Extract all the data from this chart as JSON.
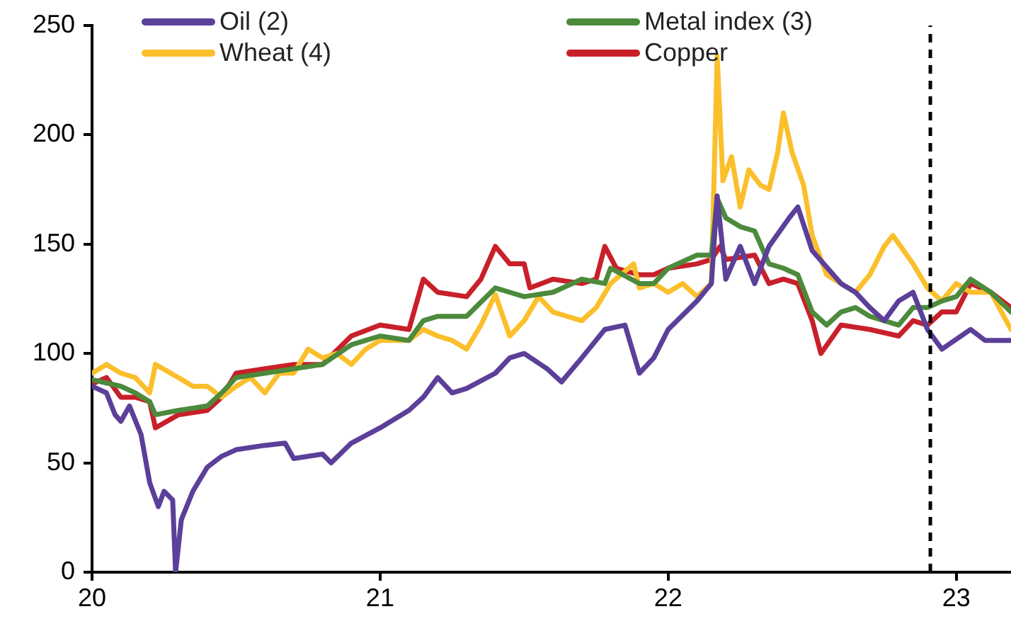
{
  "chart_data": {
    "type": "line",
    "xlim": [
      2020,
      2023.19
    ],
    "xticks": [
      {
        "value": 2020,
        "label": "20"
      },
      {
        "value": 2021,
        "label": "21"
      },
      {
        "value": 2022,
        "label": "22"
      },
      {
        "value": 2023,
        "label": "23"
      }
    ],
    "ylim": [
      0,
      250
    ],
    "yticks": [
      0,
      50,
      100,
      150,
      200,
      250
    ],
    "grid": false,
    "legend": "top",
    "marker": "none",
    "line_style": "solid",
    "ref_lines": [
      {
        "axis": "x",
        "value": 2022.91,
        "color": "#000000",
        "line_style": "dashed"
      }
    ],
    "series": [
      {
        "name": "Oil (2)",
        "color": "#5b3f99",
        "x": [
          2020,
          2020.05,
          2020.08,
          2020.1,
          2020.13,
          2020.17,
          2020.2,
          2020.23,
          2020.25,
          2020.28,
          2020.29,
          2020.31,
          2020.35,
          2020.4,
          2020.45,
          2020.5,
          2020.6,
          2020.67,
          2020.7,
          2020.8,
          2020.83,
          2020.9,
          2021,
          2021.1,
          2021.15,
          2021.2,
          2021.25,
          2021.3,
          2021.4,
          2021.45,
          2021.5,
          2021.58,
          2021.63,
          2021.7,
          2021.78,
          2021.85,
          2021.9,
          2021.95,
          2022,
          2022.1,
          2022.15,
          2022.17,
          2022.2,
          2022.25,
          2022.3,
          2022.35,
          2022.42,
          2022.45,
          2022.5,
          2022.6,
          2022.65,
          2022.7,
          2022.75,
          2022.8,
          2022.85,
          2022.9,
          2022.95,
          2023.05,
          2023.1,
          2023.19
        ],
        "values": [
          85,
          82,
          72,
          69,
          76,
          63,
          41,
          30,
          37,
          33,
          0,
          24,
          37,
          48,
          53,
          56,
          58,
          59,
          52,
          54,
          50,
          59,
          66,
          74,
          80,
          89,
          82,
          84,
          91,
          98,
          100,
          93,
          87,
          98,
          111,
          113,
          91,
          98,
          111,
          124,
          132,
          172,
          134,
          149,
          132,
          149,
          162,
          167,
          147,
          132,
          128,
          121,
          115,
          124,
          128,
          111,
          102,
          111,
          106,
          106
        ]
      },
      {
        "name": "Metal index (3)",
        "color": "#4c8a3c",
        "x": [
          2020,
          2020.1,
          2020.15,
          2020.2,
          2020.22,
          2020.3,
          2020.4,
          2020.45,
          2020.5,
          2020.6,
          2020.7,
          2020.8,
          2020.9,
          2021,
          2021.1,
          2021.15,
          2021.2,
          2021.3,
          2021.4,
          2021.45,
          2021.5,
          2021.6,
          2021.7,
          2021.78,
          2021.8,
          2021.9,
          2021.95,
          2022,
          2022.1,
          2022.15,
          2022.17,
          2022.2,
          2022.25,
          2022.3,
          2022.35,
          2022.4,
          2022.45,
          2022.5,
          2022.55,
          2022.6,
          2022.65,
          2022.7,
          2022.8,
          2022.85,
          2022.9,
          2022.95,
          2023,
          2023.05,
          2023.12,
          2023.19
        ],
        "values": [
          88,
          85,
          82,
          78,
          72,
          74,
          76,
          82,
          89,
          91,
          93,
          95,
          104,
          108,
          106,
          115,
          117,
          117,
          130,
          128,
          126,
          128,
          134,
          132,
          139,
          132,
          132,
          139,
          145,
          145,
          171,
          162,
          158,
          156,
          141,
          139,
          136,
          119,
          113,
          119,
          121,
          117,
          113,
          121,
          121,
          124,
          126,
          134,
          128,
          119
        ]
      },
      {
        "name": "Wheat (4)",
        "color": "#fbbf2c",
        "x": [
          2020,
          2020.05,
          2020.1,
          2020.15,
          2020.2,
          2020.22,
          2020.3,
          2020.35,
          2020.4,
          2020.45,
          2020.5,
          2020.55,
          2020.6,
          2020.65,
          2020.7,
          2020.75,
          2020.8,
          2020.85,
          2020.9,
          2020.95,
          2021,
          2021.1,
          2021.15,
          2021.2,
          2021.25,
          2021.3,
          2021.35,
          2021.4,
          2021.45,
          2021.5,
          2021.55,
          2021.6,
          2021.7,
          2021.75,
          2021.8,
          2021.88,
          2021.9,
          2021.95,
          2022,
          2022.05,
          2022.1,
          2022.15,
          2022.17,
          2022.19,
          2022.22,
          2022.25,
          2022.28,
          2022.32,
          2022.35,
          2022.38,
          2022.4,
          2022.43,
          2022.47,
          2022.5,
          2022.55,
          2022.6,
          2022.65,
          2022.7,
          2022.75,
          2022.78,
          2022.85,
          2022.9,
          2022.95,
          2023,
          2023.05,
          2023.12,
          2023.19
        ],
        "values": [
          91,
          95,
          91,
          89,
          82,
          95,
          89,
          85,
          85,
          80,
          85,
          89,
          82,
          91,
          91,
          102,
          98,
          100,
          95,
          102,
          106,
          106,
          111,
          108,
          106,
          102,
          113,
          127,
          108,
          115,
          126,
          119,
          115,
          121,
          132,
          141,
          130,
          132,
          128,
          132,
          126,
          132,
          236,
          179,
          190,
          167,
          184,
          177,
          175,
          192,
          210,
          192,
          177,
          154,
          136,
          132,
          128,
          136,
          149,
          154,
          141,
          130,
          124,
          132,
          128,
          128,
          111
        ]
      },
      {
        "name": "Copper",
        "color": "#c8202a",
        "x": [
          2020,
          2020.05,
          2020.1,
          2020.15,
          2020.2,
          2020.22,
          2020.3,
          2020.4,
          2020.45,
          2020.5,
          2020.6,
          2020.7,
          2020.8,
          2020.9,
          2021,
          2021.1,
          2021.15,
          2021.2,
          2021.3,
          2021.35,
          2021.4,
          2021.45,
          2021.5,
          2021.52,
          2021.6,
          2021.7,
          2021.75,
          2021.78,
          2021.82,
          2021.9,
          2021.95,
          2022,
          2022.1,
          2022.15,
          2022.18,
          2022.2,
          2022.3,
          2022.35,
          2022.4,
          2022.45,
          2022.5,
          2022.53,
          2022.6,
          2022.7,
          2022.8,
          2022.85,
          2022.9,
          2022.95,
          2023,
          2023.05,
          2023.12,
          2023.19
        ],
        "values": [
          86,
          89,
          80,
          80,
          78,
          66,
          72,
          74,
          80,
          91,
          93,
          95,
          95,
          108,
          113,
          111,
          134,
          128,
          126,
          134,
          149,
          141,
          141,
          130,
          134,
          132,
          134,
          149,
          139,
          136,
          136,
          139,
          141,
          143,
          149,
          143,
          145,
          132,
          134,
          132,
          115,
          100,
          113,
          111,
          108,
          115,
          113,
          119,
          119,
          132,
          128,
          121
        ]
      }
    ]
  }
}
